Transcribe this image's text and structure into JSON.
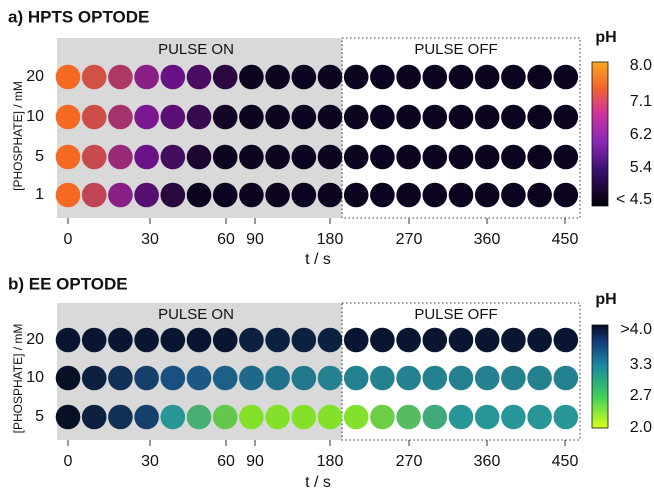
{
  "panels": [
    {
      "title": "a) HPTS OPTODE",
      "y_axis_label": "[PHOSPHATE] / mM",
      "rows": [
        "20",
        "10",
        "5",
        "1"
      ],
      "pulse_on": "PULSE ON",
      "pulse_off": "PULSE OFF",
      "x_ticks": [
        "0",
        "30",
        "60",
        "90",
        "180",
        "270",
        "360",
        "450"
      ],
      "x_axis_label": "t / s",
      "colorbar": {
        "title": "pH",
        "ticks": [
          "8.0",
          "7.1",
          "6.2",
          "5.4",
          "< 4.5"
        ]
      }
    },
    {
      "title": "b) EE OPTODE",
      "y_axis_label": "[PHOSPHATE] / mM",
      "rows": [
        "20",
        "10",
        "5"
      ],
      "pulse_on": "PULSE ON",
      "pulse_off": "PULSE OFF",
      "x_ticks": [
        "0",
        "30",
        "60",
        "90",
        "180",
        "270",
        "360",
        "450"
      ],
      "x_axis_label": "t / s",
      "colorbar": {
        "title": "pH",
        "ticks": [
          ">4.0",
          "3.3",
          "2.7",
          "2.0"
        ]
      }
    }
  ]
}
